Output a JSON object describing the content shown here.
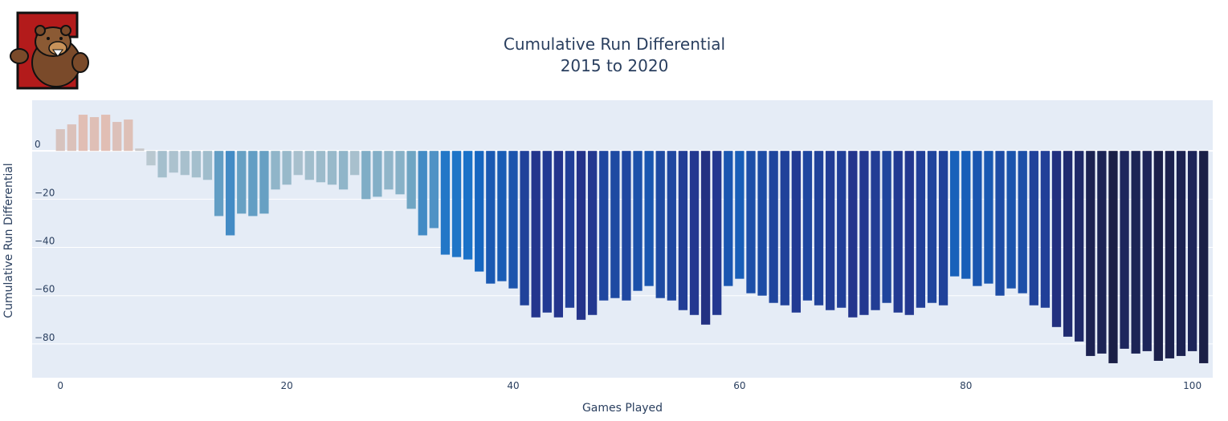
{
  "chart_data": {
    "type": "bar",
    "title": "Cumulative Run Differential",
    "subtitle": "2015 to 2020",
    "xlabel": "Games Played",
    "ylabel": "Cumulative Run Differential",
    "x": [
      0,
      1,
      2,
      3,
      4,
      5,
      6,
      7,
      8,
      9,
      10,
      11,
      12,
      13,
      14,
      15,
      16,
      17,
      18,
      19,
      20,
      21,
      22,
      23,
      24,
      25,
      26,
      27,
      28,
      29,
      30,
      31,
      32,
      33,
      34,
      35,
      36,
      37,
      38,
      39,
      40,
      41,
      42,
      43,
      44,
      45,
      46,
      47,
      48,
      49,
      50,
      51,
      52,
      53,
      54,
      55,
      56,
      57,
      58,
      59,
      60,
      61,
      62,
      63,
      64,
      65,
      66,
      67,
      68,
      69,
      70,
      71,
      72,
      73,
      74,
      75,
      76,
      77,
      78,
      79,
      80,
      81,
      82,
      83,
      84,
      85,
      86,
      87,
      88,
      89,
      90,
      91,
      92,
      93,
      94,
      95,
      96,
      97,
      98,
      99,
      100,
      101
    ],
    "values": [
      9,
      11,
      15,
      14,
      15,
      12,
      13,
      1,
      -6,
      -11,
      -9,
      -10,
      -11,
      -12,
      -27,
      -35,
      -26,
      -27,
      -26,
      -16,
      -14,
      -10,
      -12,
      -13,
      -14,
      -16,
      -10,
      -20,
      -19,
      -16,
      -18,
      -24,
      -35,
      -32,
      -43,
      -44,
      -45,
      -50,
      -55,
      -54,
      -57,
      -64,
      -69,
      -67,
      -69,
      -65,
      -70,
      -68,
      -62,
      -61,
      -62,
      -58,
      -56,
      -61,
      -62,
      -66,
      -68,
      -72,
      -68,
      -56,
      -53,
      -59,
      -60,
      -63,
      -64,
      -67,
      -62,
      -64,
      -66,
      -65,
      -69,
      -68,
      -66,
      -63,
      -67,
      -68,
      -65,
      -63,
      -64,
      -52,
      -53,
      -56,
      -55,
      -60,
      -57,
      -59,
      -64,
      -65,
      -73,
      -77,
      -79,
      -85,
      -84,
      -88,
      -82,
      -84,
      -83,
      -87,
      -86,
      -85,
      -83,
      -88
    ],
    "x_ticks": [
      0,
      20,
      40,
      60,
      80,
      100
    ],
    "y_ticks": [
      0,
      -20,
      -40,
      -60,
      -80
    ],
    "x_tick_labels": [
      "0",
      "20",
      "40",
      "60",
      "80",
      "100"
    ],
    "y_tick_labels": [
      "0",
      "−20",
      "−40",
      "−60",
      "−80"
    ],
    "xlim": [
      -2.5,
      101.8
    ],
    "ylim": [
      -94,
      21
    ],
    "colorscale": "red-to-blue (positive reddish, negative deepening blue)",
    "grid": true,
    "legend": "none"
  },
  "colors": {
    "plot_bg": "#e5ecf6",
    "grid": "#ffffff",
    "text": "#2a3f5f",
    "logo_red": "#b31b1b",
    "logo_brown": "#7a4a2a"
  },
  "logo": {
    "icon": "cornell-bear-logo"
  }
}
